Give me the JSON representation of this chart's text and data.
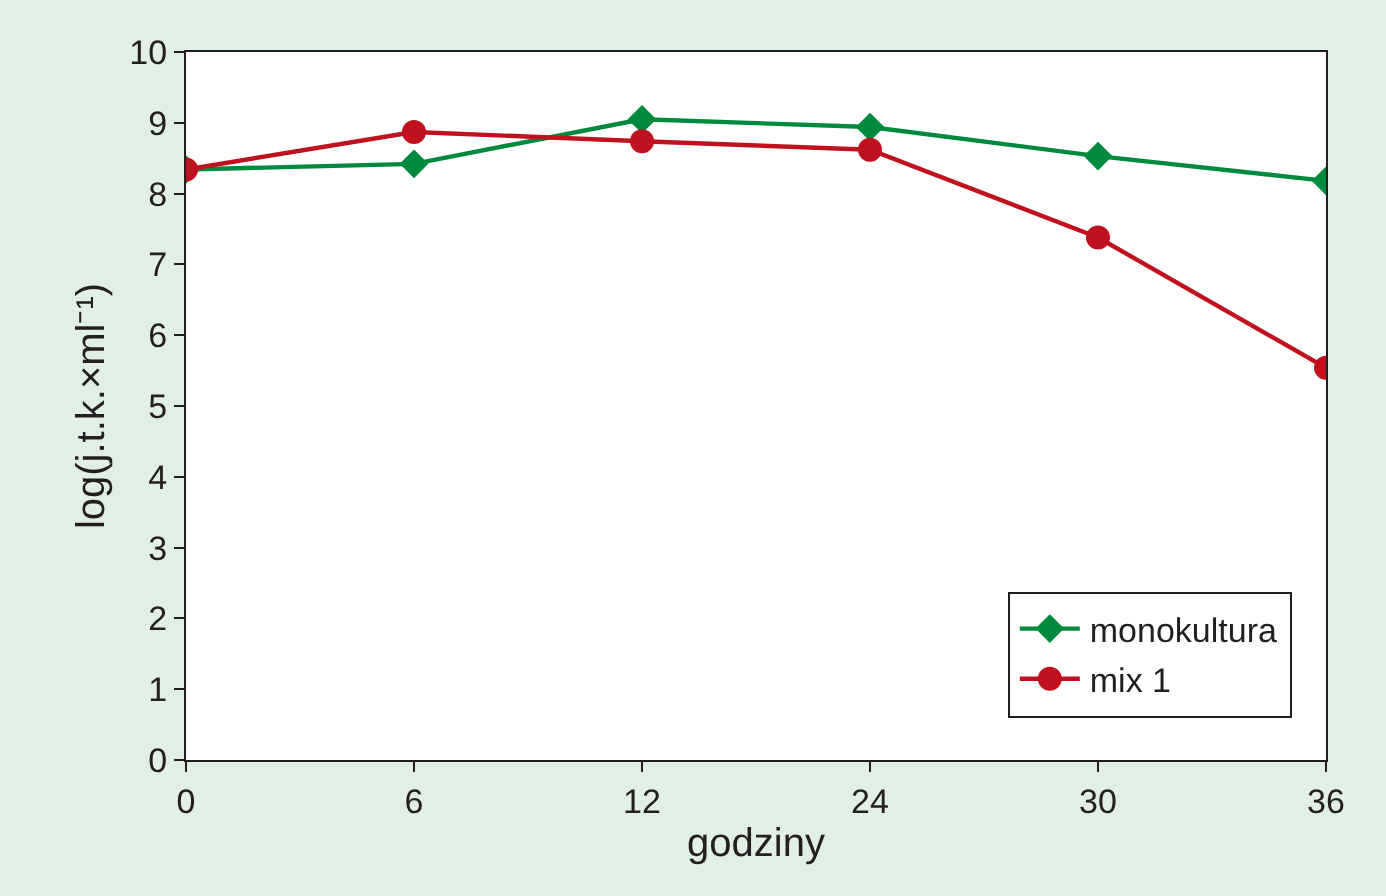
{
  "chart_data": {
    "type": "line",
    "xlabel": "godziny",
    "ylabel": "log(j.t.k.×ml⁻¹)",
    "categories": [
      "0",
      "6",
      "12",
      "24",
      "30",
      "36"
    ],
    "ylim": [
      0,
      10
    ],
    "yticks": [
      0,
      1,
      2,
      3,
      4,
      5,
      6,
      7,
      8,
      9,
      10
    ],
    "legend": "bottom right",
    "line_style": "solid",
    "series": [
      {
        "name": "monokultura",
        "color": "#008a3e",
        "marker": "diamond",
        "values": [
          8.34,
          8.42,
          9.05,
          8.94,
          8.53,
          8.18
        ]
      },
      {
        "name": "mix 1",
        "color": "#c0111f",
        "marker": "circle",
        "values": [
          8.34,
          8.87,
          8.74,
          8.62,
          7.38,
          5.54
        ]
      }
    ]
  }
}
